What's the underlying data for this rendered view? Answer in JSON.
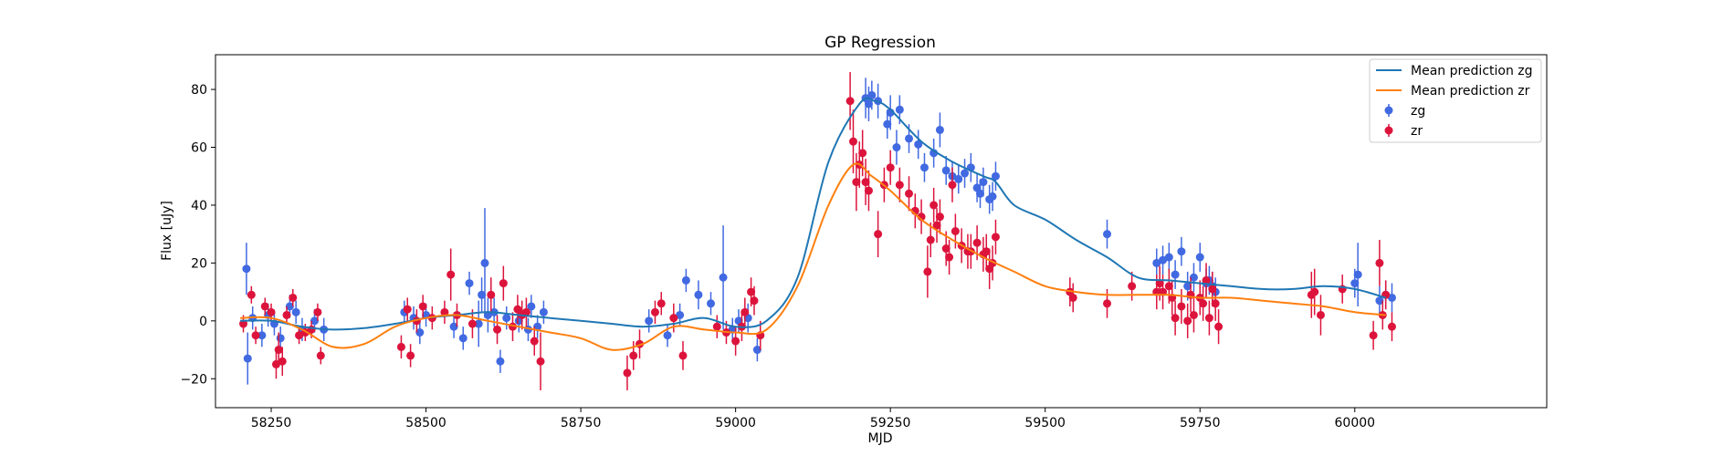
{
  "chart_data": {
    "type": "scatter",
    "title": "GP Regression",
    "xlabel": "MJD",
    "ylabel": "Flux [uJy]",
    "xlim": [
      58160,
      60310
    ],
    "ylim": [
      -30,
      92
    ],
    "xticks": [
      58250,
      58500,
      58750,
      59000,
      59250,
      59500,
      59750,
      60000
    ],
    "yticks": [
      -20,
      0,
      20,
      40,
      60,
      80
    ],
    "grid": false,
    "legend_position": "top-right",
    "colors": {
      "zg_line": "#1f77b4",
      "zr_line": "#ff7f0e",
      "zg_points": "#4169e1",
      "zr_points": "#dc143c"
    },
    "legend": [
      {
        "label": "Mean prediction zg",
        "kind": "line",
        "color": "#1f77b4"
      },
      {
        "label": "Mean prediction zr",
        "kind": "line",
        "color": "#ff7f0e"
      },
      {
        "label": "zg",
        "kind": "marker",
        "color": "#4169e1"
      },
      {
        "label": "zr",
        "kind": "marker",
        "color": "#dc143c"
      }
    ],
    "series": [
      {
        "name": "Mean prediction zg",
        "kind": "line",
        "x": [
          58200,
          58250,
          58300,
          58350,
          58400,
          58450,
          58500,
          58550,
          58600,
          58650,
          58700,
          58750,
          58800,
          58850,
          58900,
          58950,
          59000,
          59050,
          59100,
          59150,
          59200,
          59225,
          59250,
          59300,
          59350,
          59400,
          59420,
          59450,
          59500,
          59550,
          59600,
          59650,
          59700,
          59750,
          59800,
          59850,
          59900,
          59950,
          60000,
          60050
        ],
        "y": [
          0,
          0,
          -2,
          -3,
          -2.5,
          -1,
          1,
          2,
          3,
          2,
          1,
          0,
          -1,
          -2,
          -1,
          1,
          -2,
          0,
          15,
          55,
          75,
          76,
          73,
          62,
          55,
          50,
          48,
          40,
          35,
          28,
          22,
          15,
          14,
          13,
          12,
          11,
          11,
          12,
          11,
          8
        ]
      },
      {
        "name": "Mean prediction zr",
        "kind": "line",
        "x": [
          58200,
          58250,
          58300,
          58350,
          58400,
          58450,
          58500,
          58550,
          58600,
          58650,
          58700,
          58750,
          58800,
          58850,
          58900,
          58950,
          59000,
          59050,
          59100,
          59150,
          59190,
          59220,
          59250,
          59300,
          59350,
          59400,
          59450,
          59500,
          59550,
          59600,
          59650,
          59700,
          59750,
          59800,
          59850,
          59900,
          59950,
          60000,
          60050
        ],
        "y": [
          1,
          1,
          -3,
          -9,
          -8,
          -2,
          1,
          2,
          0,
          -2,
          -4,
          -6,
          -10,
          -8,
          -2,
          -3,
          -4,
          -3,
          12,
          40,
          54,
          50,
          45,
          35,
          28,
          22,
          17,
          12,
          10,
          9,
          9,
          9,
          8,
          8,
          7,
          6,
          5,
          3,
          2
        ]
      },
      {
        "name": "zg",
        "kind": "errorbar",
        "x": [
          58210,
          58212,
          58220,
          58235,
          58245,
          58255,
          58265,
          58280,
          58290,
          58300,
          58320,
          58335,
          58465,
          58480,
          58490,
          58500,
          58545,
          58560,
          58570,
          58585,
          58590,
          58595,
          58600,
          58610,
          58620,
          58630,
          58650,
          58665,
          58670,
          58680,
          58690,
          58860,
          58890,
          58910,
          58920,
          58940,
          58960,
          58980,
          58995,
          59005,
          59020,
          59035,
          59210,
          59215,
          59220,
          59230,
          59245,
          59250,
          59260,
          59265,
          59280,
          59295,
          59305,
          59320,
          59330,
          59340,
          59350,
          59360,
          59370,
          59380,
          59390,
          59395,
          59400,
          59410,
          59415,
          59420,
          59600,
          59680,
          59690,
          59700,
          59710,
          59720,
          59730,
          59740,
          59750,
          59760,
          59765,
          59770,
          59775,
          60000,
          60005,
          60040,
          60050,
          60060
        ],
        "y": [
          18,
          -13,
          1,
          -5,
          2,
          -1,
          -6,
          5,
          3,
          -3,
          0,
          -3,
          3,
          1,
          -4,
          2,
          -2,
          -6,
          13,
          -1,
          9,
          20,
          2,
          3,
          -14,
          1,
          0,
          -3,
          5,
          -2,
          3,
          0,
          -5,
          2,
          14,
          9,
          6,
          15,
          -3,
          0,
          1,
          -10,
          77,
          75,
          78,
          76,
          68,
          72,
          60,
          73,
          63,
          61,
          53,
          58,
          66,
          52,
          50,
          49,
          51,
          53,
          46,
          44,
          48,
          42,
          43,
          50,
          30,
          20,
          21,
          22,
          16,
          24,
          12,
          15,
          22,
          13,
          14,
          12,
          10,
          13,
          16,
          7,
          9,
          8
        ],
        "err": [
          9,
          9,
          4,
          4,
          4,
          4,
          4,
          4,
          4,
          4,
          4,
          4,
          4,
          4,
          4,
          4,
          4,
          4,
          4,
          8,
          6,
          19,
          6,
          5,
          4,
          4,
          4,
          4,
          4,
          4,
          4,
          4,
          4,
          4,
          4,
          5,
          4,
          18,
          4,
          4,
          5,
          4,
          7,
          6,
          5,
          6,
          5,
          6,
          6,
          5,
          5,
          5,
          5,
          5,
          6,
          5,
          5,
          5,
          5,
          5,
          5,
          5,
          5,
          5,
          5,
          5,
          5,
          5,
          5,
          5,
          5,
          5,
          5,
          5,
          5,
          5,
          5,
          5,
          5,
          5,
          11,
          5,
          5,
          5
        ]
      },
      {
        "name": "zr",
        "kind": "errorbar",
        "x": [
          58205,
          58218,
          58225,
          58240,
          58250,
          58258,
          58262,
          58268,
          58275,
          58285,
          58295,
          58305,
          58315,
          58325,
          58330,
          58460,
          58470,
          58475,
          58485,
          58495,
          58510,
          58530,
          58540,
          58550,
          58575,
          58605,
          58615,
          58625,
          58640,
          58648,
          58655,
          58662,
          58675,
          58685,
          58825,
          58835,
          58845,
          58870,
          58880,
          58900,
          58915,
          58970,
          58985,
          59000,
          59010,
          59015,
          59025,
          59030,
          59040,
          59185,
          59190,
          59195,
          59200,
          59205,
          59210,
          59215,
          59230,
          59240,
          59250,
          59265,
          59280,
          59290,
          59300,
          59310,
          59315,
          59320,
          59325,
          59330,
          59340,
          59345,
          59350,
          59355,
          59365,
          59375,
          59380,
          59390,
          59400,
          59405,
          59410,
          59415,
          59420,
          59540,
          59545,
          59600,
          59640,
          59680,
          59685,
          59690,
          59700,
          59705,
          59710,
          59720,
          59730,
          59735,
          59740,
          59750,
          59755,
          59760,
          59765,
          59770,
          59775,
          59780,
          59930,
          59935,
          59945,
          59980,
          60030,
          60040,
          60045,
          60050,
          60060
        ],
        "y": [
          -1,
          9,
          -5,
          5,
          3,
          -15,
          -10,
          -14,
          2,
          8,
          -5,
          -4,
          -3,
          3,
          -12,
          -9,
          4,
          -12,
          0,
          5,
          1,
          3,
          16,
          2,
          -1,
          9,
          -3,
          13,
          -2,
          4,
          2,
          3,
          -7,
          -14,
          -18,
          -12,
          -8,
          3,
          6,
          1,
          -12,
          -2,
          -4,
          -7,
          -2,
          3,
          10,
          7,
          -5,
          76,
          62,
          48,
          54,
          58,
          48,
          45,
          30,
          47,
          53,
          47,
          44,
          38,
          36,
          17,
          28,
          40,
          33,
          36,
          25,
          22,
          47,
          31,
          26,
          24,
          24,
          27,
          23,
          24,
          18,
          20,
          29,
          10,
          8,
          6,
          12,
          10,
          13,
          10,
          12,
          8,
          1,
          5,
          0,
          9,
          2,
          8,
          6,
          14,
          1,
          11,
          6,
          -2,
          9,
          10,
          2,
          11,
          -5,
          20,
          2,
          9,
          -2
        ],
        "err": [
          3,
          3,
          3,
          3,
          3,
          5,
          6,
          5,
          3,
          3,
          3,
          3,
          3,
          3,
          3,
          4,
          4,
          4,
          4,
          4,
          4,
          4,
          9,
          4,
          5,
          6,
          5,
          6,
          5,
          5,
          5,
          5,
          5,
          10,
          6,
          5,
          5,
          4,
          4,
          5,
          5,
          4,
          4,
          5,
          5,
          5,
          5,
          5,
          5,
          10,
          11,
          10,
          8,
          8,
          8,
          7,
          8,
          6,
          6,
          6,
          6,
          6,
          6,
          9,
          6,
          6,
          6,
          6,
          6,
          6,
          6,
          6,
          6,
          6,
          6,
          6,
          6,
          6,
          7,
          6,
          6,
          5,
          5,
          5,
          5,
          6,
          6,
          6,
          6,
          6,
          6,
          6,
          6,
          6,
          6,
          6,
          6,
          6,
          6,
          6,
          6,
          6,
          8,
          8,
          7,
          5,
          5,
          8,
          5,
          5,
          5
        ]
      }
    ]
  }
}
